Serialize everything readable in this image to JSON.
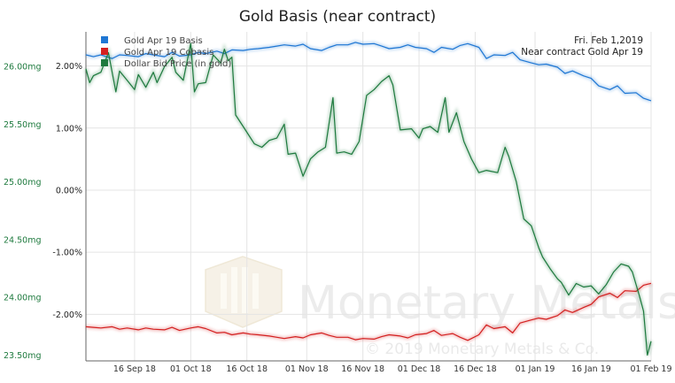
{
  "chart_data": {
    "type": "line",
    "title": "Gold Basis (near contract)",
    "info": {
      "date": "Fri. Feb 1,2019",
      "contract": "Near contract Gold Apr 19"
    },
    "watermark": {
      "brand": "Monetary Metals",
      "copyright": "© 2019 Monetary Metals & Co."
    },
    "x_ticks": [
      "16 Sep 18",
      "01 Oct 18",
      "16 Oct 18",
      "01 Nov 18",
      "16 Nov 18",
      "01 Dec 18",
      "16 Dec 18",
      "01 Jan 19",
      "16 Jan 19",
      "01 Feb 19"
    ],
    "x_range": [
      "2018-09-03",
      "2019-02-01"
    ],
    "left_axis": {
      "ticks": [
        "26.00mg",
        "25.50mg",
        "25.00mg",
        "24.50mg",
        "24.00mg",
        "23.50mg"
      ],
      "tick_values": [
        26.0,
        25.5,
        25.0,
        24.5,
        24.0,
        23.5
      ],
      "range": [
        23.45,
        26.3
      ]
    },
    "right_axis": {
      "ticks": [
        "2.00%",
        "1.00%",
        "0.00%",
        "-1.00%",
        "-2.00%"
      ],
      "tick_values": [
        2.0,
        1.0,
        0.0,
        -1.0,
        -2.0
      ],
      "range": [
        -2.75,
        2.55
      ]
    },
    "series": [
      {
        "name": "Gold Apr 19 Basis",
        "color": "#1f77d4",
        "axis": "right",
        "data": [
          [
            "2018-09-03",
            2.18
          ],
          [
            "2018-09-05",
            2.15
          ],
          [
            "2018-09-07",
            2.18
          ],
          [
            "2018-09-10",
            2.12
          ],
          [
            "2018-09-12",
            2.18
          ],
          [
            "2018-09-14",
            2.17
          ],
          [
            "2018-09-17",
            2.15
          ],
          [
            "2018-09-19",
            2.2
          ],
          [
            "2018-09-21",
            2.18
          ],
          [
            "2018-09-24",
            2.15
          ],
          [
            "2018-09-26",
            2.22
          ],
          [
            "2018-09-28",
            2.16
          ],
          [
            "2018-10-01",
            2.18
          ],
          [
            "2018-10-03",
            2.22
          ],
          [
            "2018-10-05",
            2.2
          ],
          [
            "2018-10-08",
            2.24
          ],
          [
            "2018-10-10",
            2.2
          ],
          [
            "2018-10-12",
            2.26
          ],
          [
            "2018-10-15",
            2.25
          ],
          [
            "2018-10-17",
            2.27
          ],
          [
            "2018-10-19",
            2.28
          ],
          [
            "2018-10-22",
            2.3
          ],
          [
            "2018-10-24",
            2.32
          ],
          [
            "2018-10-26",
            2.34
          ],
          [
            "2018-10-29",
            2.32
          ],
          [
            "2018-10-31",
            2.35
          ],
          [
            "2018-11-02",
            2.28
          ],
          [
            "2018-11-05",
            2.25
          ],
          [
            "2018-11-07",
            2.3
          ],
          [
            "2018-11-09",
            2.34
          ],
          [
            "2018-11-12",
            2.34
          ],
          [
            "2018-11-14",
            2.38
          ],
          [
            "2018-11-16",
            2.35
          ],
          [
            "2018-11-19",
            2.36
          ],
          [
            "2018-11-21",
            2.32
          ],
          [
            "2018-11-23",
            2.28
          ],
          [
            "2018-11-26",
            2.3
          ],
          [
            "2018-11-28",
            2.34
          ],
          [
            "2018-11-30",
            2.3
          ],
          [
            "2018-12-03",
            2.28
          ],
          [
            "2018-12-05",
            2.22
          ],
          [
            "2018-12-07",
            2.3
          ],
          [
            "2018-12-10",
            2.27
          ],
          [
            "2018-12-12",
            2.33
          ],
          [
            "2018-12-14",
            2.36
          ],
          [
            "2018-12-17",
            2.3
          ],
          [
            "2018-12-19",
            2.12
          ],
          [
            "2018-12-21",
            2.18
          ],
          [
            "2018-12-24",
            2.17
          ],
          [
            "2018-12-26",
            2.22
          ],
          [
            "2018-12-28",
            2.1
          ],
          [
            "2018-12-31",
            2.05
          ],
          [
            "2019-01-02",
            2.02
          ],
          [
            "2019-01-04",
            2.03
          ],
          [
            "2019-01-07",
            1.98
          ],
          [
            "2019-01-09",
            1.88
          ],
          [
            "2019-01-11",
            1.92
          ],
          [
            "2019-01-14",
            1.84
          ],
          [
            "2019-01-16",
            1.8
          ],
          [
            "2019-01-18",
            1.68
          ],
          [
            "2019-01-21",
            1.62
          ],
          [
            "2019-01-23",
            1.68
          ],
          [
            "2019-01-25",
            1.56
          ],
          [
            "2019-01-28",
            1.57
          ],
          [
            "2019-01-30",
            1.48
          ],
          [
            "2019-02-01",
            1.44
          ]
        ]
      },
      {
        "name": "Gold Apr 19 Cobasis",
        "color": "#d42020",
        "axis": "right",
        "data": [
          [
            "2018-09-03",
            -2.2
          ],
          [
            "2018-09-05",
            -2.21
          ],
          [
            "2018-09-07",
            -2.22
          ],
          [
            "2018-09-10",
            -2.2
          ],
          [
            "2018-09-12",
            -2.24
          ],
          [
            "2018-09-14",
            -2.22
          ],
          [
            "2018-09-17",
            -2.25
          ],
          [
            "2018-09-19",
            -2.22
          ],
          [
            "2018-09-21",
            -2.24
          ],
          [
            "2018-09-24",
            -2.25
          ],
          [
            "2018-09-26",
            -2.21
          ],
          [
            "2018-09-28",
            -2.26
          ],
          [
            "2018-10-01",
            -2.22
          ],
          [
            "2018-10-03",
            -2.2
          ],
          [
            "2018-10-05",
            -2.23
          ],
          [
            "2018-10-08",
            -2.3
          ],
          [
            "2018-10-10",
            -2.29
          ],
          [
            "2018-10-12",
            -2.33
          ],
          [
            "2018-10-15",
            -2.3
          ],
          [
            "2018-10-17",
            -2.32
          ],
          [
            "2018-10-19",
            -2.33
          ],
          [
            "2018-10-22",
            -2.35
          ],
          [
            "2018-10-24",
            -2.37
          ],
          [
            "2018-10-26",
            -2.39
          ],
          [
            "2018-10-29",
            -2.36
          ],
          [
            "2018-10-31",
            -2.38
          ],
          [
            "2018-11-02",
            -2.33
          ],
          [
            "2018-11-05",
            -2.3
          ],
          [
            "2018-11-07",
            -2.34
          ],
          [
            "2018-11-09",
            -2.37
          ],
          [
            "2018-11-12",
            -2.37
          ],
          [
            "2018-11-14",
            -2.41
          ],
          [
            "2018-11-16",
            -2.39
          ],
          [
            "2018-11-19",
            -2.4
          ],
          [
            "2018-11-21",
            -2.36
          ],
          [
            "2018-11-23",
            -2.33
          ],
          [
            "2018-11-26",
            -2.35
          ],
          [
            "2018-11-28",
            -2.38
          ],
          [
            "2018-11-30",
            -2.33
          ],
          [
            "2018-12-03",
            -2.31
          ],
          [
            "2018-12-05",
            -2.26
          ],
          [
            "2018-12-07",
            -2.34
          ],
          [
            "2018-12-10",
            -2.31
          ],
          [
            "2018-12-12",
            -2.37
          ],
          [
            "2018-12-14",
            -2.42
          ],
          [
            "2018-12-17",
            -2.33
          ],
          [
            "2018-12-19",
            -2.17
          ],
          [
            "2018-12-21",
            -2.23
          ],
          [
            "2018-12-24",
            -2.2
          ],
          [
            "2018-12-26",
            -2.3
          ],
          [
            "2018-12-28",
            -2.14
          ],
          [
            "2018-12-31",
            -2.09
          ],
          [
            "2019-01-02",
            -2.06
          ],
          [
            "2019-01-04",
            -2.08
          ],
          [
            "2019-01-07",
            -2.02
          ],
          [
            "2019-01-09",
            -1.93
          ],
          [
            "2019-01-11",
            -1.97
          ],
          [
            "2019-01-14",
            -1.89
          ],
          [
            "2019-01-16",
            -1.84
          ],
          [
            "2019-01-18",
            -1.72
          ],
          [
            "2019-01-21",
            -1.66
          ],
          [
            "2019-01-23",
            -1.73
          ],
          [
            "2019-01-25",
            -1.62
          ],
          [
            "2019-01-28",
            -1.63
          ],
          [
            "2019-01-30",
            -1.53
          ],
          [
            "2019-02-01",
            -1.5
          ]
        ]
      },
      {
        "name": "Dollar Bid Price (in gold)",
        "color": "#1e7a3e",
        "axis": "left",
        "data": [
          [
            "2018-09-03",
            25.98
          ],
          [
            "2018-09-04",
            25.86
          ],
          [
            "2018-09-05",
            25.92
          ],
          [
            "2018-09-07",
            25.95
          ],
          [
            "2018-09-09",
            26.12
          ],
          [
            "2018-09-11",
            25.78
          ],
          [
            "2018-09-12",
            25.96
          ],
          [
            "2018-09-14",
            25.88
          ],
          [
            "2018-09-16",
            25.8
          ],
          [
            "2018-09-17",
            25.93
          ],
          [
            "2018-09-19",
            25.82
          ],
          [
            "2018-09-21",
            25.95
          ],
          [
            "2018-09-22",
            25.86
          ],
          [
            "2018-09-24",
            26.0
          ],
          [
            "2018-09-26",
            26.08
          ],
          [
            "2018-09-27",
            25.95
          ],
          [
            "2018-09-29",
            25.88
          ],
          [
            "2018-10-01",
            26.2
          ],
          [
            "2018-10-02",
            25.78
          ],
          [
            "2018-10-03",
            25.85
          ],
          [
            "2018-10-05",
            25.86
          ],
          [
            "2018-10-07",
            26.1
          ],
          [
            "2018-10-09",
            26.03
          ],
          [
            "2018-10-10",
            26.15
          ],
          [
            "2018-10-11",
            26.05
          ],
          [
            "2018-10-12",
            26.08
          ],
          [
            "2018-10-13",
            25.58
          ],
          [
            "2018-10-15",
            25.48
          ],
          [
            "2018-10-18",
            25.33
          ],
          [
            "2018-10-20",
            25.3
          ],
          [
            "2018-10-22",
            25.36
          ],
          [
            "2018-10-24",
            25.38
          ],
          [
            "2018-10-26",
            25.5
          ],
          [
            "2018-10-27",
            25.24
          ],
          [
            "2018-10-29",
            25.25
          ],
          [
            "2018-10-31",
            25.05
          ],
          [
            "2018-11-02",
            25.2
          ],
          [
            "2018-11-04",
            25.26
          ],
          [
            "2018-11-06",
            25.3
          ],
          [
            "2018-11-08",
            25.73
          ],
          [
            "2018-11-09",
            25.25
          ],
          [
            "2018-11-11",
            25.26
          ],
          [
            "2018-11-13",
            25.24
          ],
          [
            "2018-11-15",
            25.35
          ],
          [
            "2018-11-17",
            25.75
          ],
          [
            "2018-11-19",
            25.8
          ],
          [
            "2018-11-21",
            25.87
          ],
          [
            "2018-11-23",
            25.92
          ],
          [
            "2018-11-24",
            25.84
          ],
          [
            "2018-11-26",
            25.45
          ],
          [
            "2018-11-29",
            25.46
          ],
          [
            "2018-12-01",
            25.38
          ],
          [
            "2018-12-02",
            25.46
          ],
          [
            "2018-12-04",
            25.48
          ],
          [
            "2018-12-06",
            25.43
          ],
          [
            "2018-12-08",
            25.73
          ],
          [
            "2018-12-09",
            25.43
          ],
          [
            "2018-12-11",
            25.6
          ],
          [
            "2018-12-13",
            25.35
          ],
          [
            "2018-12-15",
            25.2
          ],
          [
            "2018-12-17",
            25.08
          ],
          [
            "2018-12-19",
            25.1
          ],
          [
            "2018-12-22",
            25.08
          ],
          [
            "2018-12-24",
            25.3
          ],
          [
            "2018-12-25",
            25.22
          ],
          [
            "2018-12-27",
            25.0
          ],
          [
            "2018-12-29",
            24.68
          ],
          [
            "2018-12-31",
            24.62
          ],
          [
            "2019-01-02",
            24.43
          ],
          [
            "2019-01-03",
            24.35
          ],
          [
            "2019-01-05",
            24.25
          ],
          [
            "2019-01-07",
            24.16
          ],
          [
            "2019-01-08",
            24.13
          ],
          [
            "2019-01-10",
            24.02
          ],
          [
            "2019-01-12",
            24.12
          ],
          [
            "2019-01-14",
            24.09
          ],
          [
            "2019-01-16",
            24.1
          ],
          [
            "2019-01-18",
            24.03
          ],
          [
            "2019-01-20",
            24.11
          ],
          [
            "2019-01-22",
            24.22
          ],
          [
            "2019-01-24",
            24.29
          ],
          [
            "2019-01-26",
            24.27
          ],
          [
            "2019-01-27",
            24.22
          ],
          [
            "2019-01-29",
            24.0
          ],
          [
            "2019-01-30",
            23.88
          ],
          [
            "2019-01-31",
            23.5
          ],
          [
            "2019-02-01",
            23.62
          ]
        ]
      }
    ]
  }
}
